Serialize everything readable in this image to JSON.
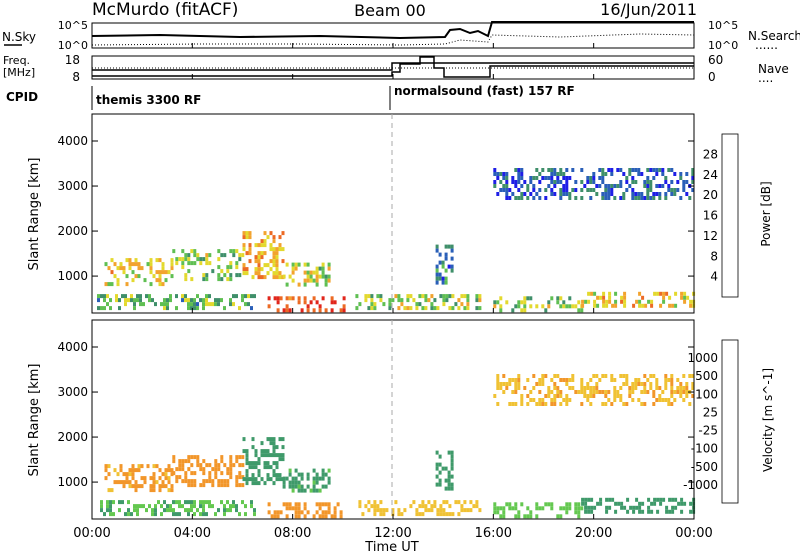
{
  "header": {
    "station": "McMurdo (fitACF)",
    "beam": "Beam 00",
    "date": "16/Jun/2011"
  },
  "noise_panel": {
    "left_label": "N.Sky",
    "left_ticks": [
      "10^5",
      "10^0"
    ],
    "right_ticks": [
      "10^5",
      "10^0"
    ],
    "right_label": "N.Search",
    "right_legend_line": "......"
  },
  "freq_panel": {
    "left_label_1": "Freq.",
    "left_label_2": "[MHz]",
    "left_ticks": [
      "18",
      "8"
    ],
    "right_ticks": [
      "60",
      "0"
    ],
    "right_label": "Nave",
    "right_legend_line": "...."
  },
  "cpid_panel": {
    "label": "CPID",
    "programs": [
      "themis 3300 RF",
      "normalsound (fast) 157 RF"
    ]
  },
  "time_axis": {
    "label": "Time UT",
    "ticks": [
      "00:00",
      "04:00",
      "08:00",
      "12:00",
      "16:00",
      "20:00",
      "00:00"
    ]
  },
  "chart_data": [
    {
      "type": "heatmap",
      "title": "Power",
      "xlabel": "Time UT",
      "ylabel": "Slant Range [km]",
      "yticks": [
        "1000",
        "2000",
        "3000",
        "4000"
      ],
      "ylim": [
        180,
        4600
      ],
      "xlim_hours": [
        0,
        24
      ],
      "colorbar": {
        "label": "Power [dB]",
        "ticks": [
          "4",
          "8",
          "12",
          "16",
          "20",
          "24",
          "28"
        ],
        "range": [
          0,
          30
        ],
        "colors": [
          "#1e1ee6",
          "#2a5fb8",
          "#3f8f6a",
          "#5fbf52",
          "#e3d92e",
          "#f2a32e",
          "#ec6a24",
          "#e1261c"
        ]
      },
      "echo_regions": [
        {
          "t": [
            0.5,
            3.2
          ],
          "range": [
            800,
            1400
          ],
          "level": 18
        },
        {
          "t": [
            3.2,
            6.0
          ],
          "range": [
            900,
            1600
          ],
          "level": 14
        },
        {
          "t": [
            6.0,
            7.6
          ],
          "range": [
            1000,
            2000
          ],
          "level": 20
        },
        {
          "t": [
            7.6,
            9.5
          ],
          "range": [
            800,
            1300
          ],
          "level": 16
        },
        {
          "t": [
            0.2,
            6.5
          ],
          "range": [
            250,
            600
          ],
          "level": 12
        },
        {
          "t": [
            7.0,
            10.0
          ],
          "range": [
            200,
            550
          ],
          "level": 27
        },
        {
          "t": [
            10.5,
            15.5
          ],
          "range": [
            250,
            600
          ],
          "level": 15
        },
        {
          "t": [
            13.7,
            14.4
          ],
          "range": [
            900,
            1700
          ],
          "level": 8
        },
        {
          "t": [
            16.0,
            19.5
          ],
          "range": [
            250,
            550
          ],
          "level": 14
        },
        {
          "t": [
            19.5,
            24.0
          ],
          "range": [
            300,
            650
          ],
          "level": 18
        },
        {
          "t": [
            16.0,
            24.0
          ],
          "range": [
            2700,
            3400
          ],
          "level": 6
        }
      ]
    },
    {
      "type": "heatmap",
      "title": "Velocity",
      "xlabel": "Time UT",
      "ylabel": "Slant Range [km]",
      "yticks": [
        "1000",
        "2000",
        "3000",
        "4000"
      ],
      "ylim": [
        180,
        4600
      ],
      "xlim_hours": [
        0,
        24
      ],
      "colorbar": {
        "label": "Velocity [m s^-1]",
        "ticks": [
          "1000",
          "500",
          "100",
          "25",
          "-25",
          "-100",
          "-500",
          "-1000"
        ],
        "colors": [
          "#1e1ee6",
          "#2e70a0",
          "#3f9a6a",
          "#64c850",
          "#b9b9b9",
          "#f0c234",
          "#f2962a",
          "#e85a1e",
          "#e1261c"
        ]
      },
      "echo_regions": [
        {
          "t": [
            0.5,
            3.2
          ],
          "range": [
            800,
            1400
          ],
          "level": -150
        },
        {
          "t": [
            3.2,
            6.0
          ],
          "range": [
            900,
            1600
          ],
          "level": -300
        },
        {
          "t": [
            6.0,
            7.6
          ],
          "range": [
            1000,
            2000
          ],
          "level": 200
        },
        {
          "t": [
            7.6,
            9.5
          ],
          "range": [
            800,
            1300
          ],
          "level": 150
        },
        {
          "t": [
            0.2,
            6.5
          ],
          "range": [
            250,
            600
          ],
          "level": 80
        },
        {
          "t": [
            7.0,
            10.0
          ],
          "range": [
            200,
            550
          ],
          "level": -200
        },
        {
          "t": [
            10.5,
            15.5
          ],
          "range": [
            250,
            600
          ],
          "level": -60
        },
        {
          "t": [
            13.7,
            14.4
          ],
          "range": [
            900,
            1700
          ],
          "level": 300
        },
        {
          "t": [
            16.0,
            19.5
          ],
          "range": [
            250,
            550
          ],
          "level": 60
        },
        {
          "t": [
            19.5,
            24.0
          ],
          "range": [
            300,
            650
          ],
          "level": 200
        },
        {
          "t": [
            16.0,
            24.0
          ],
          "range": [
            2700,
            3400
          ],
          "level": -80
        }
      ]
    }
  ]
}
